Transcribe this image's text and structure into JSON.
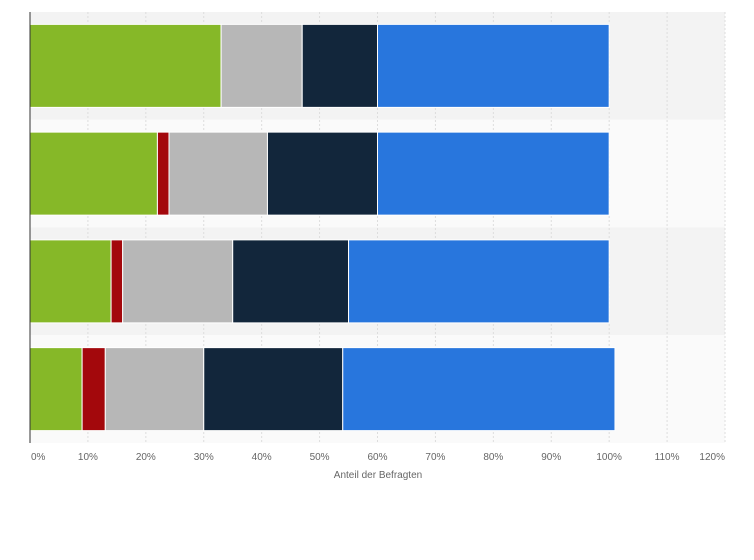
{
  "chart_data": {
    "type": "bar",
    "orientation": "horizontal",
    "stacked": true,
    "xlabel": "Anteil der Befragten",
    "xlim": [
      0,
      120
    ],
    "x_ticks": [
      "0%",
      "10%",
      "20%",
      "30%",
      "40%",
      "50%",
      "60%",
      "70%",
      "80%",
      "90%",
      "100%",
      "110%",
      "120%"
    ],
    "grid": true,
    "legend": "none",
    "categories": [
      "",
      "",
      "",
      ""
    ],
    "series": [
      {
        "color": "#86b828",
        "values": [
          33,
          22,
          14,
          9
        ]
      },
      {
        "color": "#a3080c",
        "values": [
          0,
          2,
          2,
          4
        ]
      },
      {
        "color": "#b7b7b7",
        "values": [
          14,
          17,
          19,
          17
        ]
      },
      {
        "color": "#12263b",
        "values": [
          13,
          19,
          20,
          24
        ]
      },
      {
        "color": "#2876dd",
        "values": [
          40,
          40,
          45,
          47
        ]
      }
    ]
  }
}
